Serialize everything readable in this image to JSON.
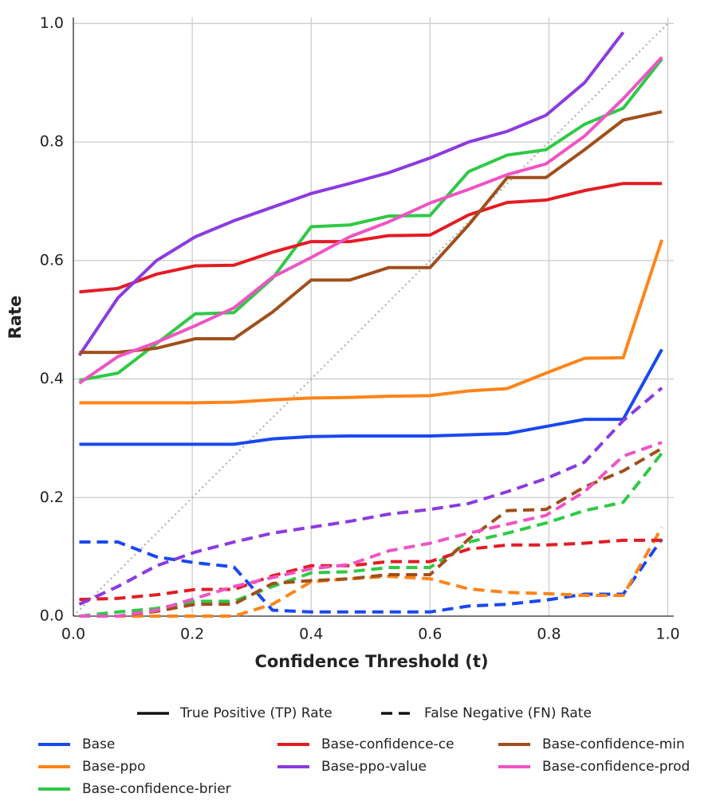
{
  "chart_data": {
    "type": "line",
    "xlabel": "Confidence Threshold (t)",
    "ylabel": "Rate",
    "x": [
      0.01,
      0.075,
      0.14,
      0.205,
      0.27,
      0.335,
      0.4,
      0.465,
      0.53,
      0.6,
      0.665,
      0.73,
      0.795,
      0.86,
      0.925,
      0.99
    ],
    "xlim": [
      0,
      1.01
    ],
    "ylim": [
      0,
      1.01
    ],
    "xticks": [
      {
        "value": 0,
        "label": "0.0"
      },
      0.2,
      0.4,
      0.6,
      0.8,
      {
        "value": 1,
        "label": "1.0"
      }
    ],
    "yticks": [
      {
        "value": 0,
        "label": "0.0"
      },
      0.2,
      0.4,
      0.6,
      0.8,
      {
        "value": 1,
        "label": "1.0"
      }
    ],
    "grid": true,
    "diagonal": true,
    "legend_columns": 3,
    "line_styles": [
      {
        "label": "True Positive (TP) Rate",
        "dash": "solid"
      },
      {
        "label": "False Negative (FN) Rate",
        "dash": "dashed"
      }
    ],
    "series": [
      {
        "name": "Base",
        "color": "#1a48f0",
        "values": [
          0.29,
          0.29,
          0.29,
          0.29,
          0.29,
          0.299,
          0.303,
          0.304,
          0.304,
          0.304,
          0.306,
          0.308,
          0.32,
          0.332,
          0.332,
          0.45
        ],
        "fn_values": [
          0.125,
          0.125,
          0.1,
          0.09,
          0.083,
          0.01,
          0.007,
          0.007,
          0.007,
          0.007,
          0.017,
          0.02,
          0.027,
          0.037,
          0.037,
          0.13
        ]
      },
      {
        "name": "Base-ppo",
        "color": "#ff8419",
        "values": [
          0.36,
          0.36,
          0.36,
          0.36,
          0.361,
          0.365,
          0.368,
          0.369,
          0.371,
          0.372,
          0.38,
          0.384,
          0.41,
          0.435,
          0.436,
          0.635
        ],
        "fn_values": [
          0,
          0,
          0,
          0,
          0,
          0.02,
          0.058,
          0.063,
          0.067,
          0.063,
          0.046,
          0.04,
          0.038,
          0.035,
          0.035,
          0.15
        ]
      },
      {
        "name": "Base-confidence-brier",
        "color": "#2fc946",
        "values": [
          0.398,
          0.41,
          0.46,
          0.51,
          0.512,
          0.57,
          0.657,
          0.66,
          0.675,
          0.676,
          0.75,
          0.778,
          0.787,
          0.83,
          0.857,
          0.94
        ],
        "fn_values": [
          0,
          0.007,
          0.013,
          0.025,
          0.025,
          0.05,
          0.073,
          0.075,
          0.082,
          0.082,
          0.125,
          0.14,
          0.157,
          0.178,
          0.192,
          0.275
        ]
      },
      {
        "name": "Base-confidence-ce",
        "color": "#e31c24",
        "values": [
          0.547,
          0.553,
          0.577,
          0.591,
          0.592,
          0.614,
          0.632,
          0.632,
          0.642,
          0.643,
          0.677,
          0.698,
          0.702,
          0.718,
          0.73,
          0.73
        ],
        "fn_values": [
          0.028,
          0.03,
          0.036,
          0.045,
          0.045,
          0.068,
          0.085,
          0.085,
          0.092,
          0.092,
          0.113,
          0.12,
          0.12,
          0.123,
          0.128,
          0.128
        ]
      },
      {
        "name": "Base-ppo-value",
        "color": "#8b3be0",
        "values": [
          0.44,
          0.537,
          0.6,
          0.64,
          0.667,
          0.69,
          0.713,
          0.73,
          0.748,
          0.773,
          0.8,
          0.818,
          0.845,
          0.9,
          0.985,
          null
        ],
        "fn_values": [
          0.02,
          0.05,
          0.085,
          0.108,
          0.125,
          0.14,
          0.15,
          0.16,
          0.172,
          0.18,
          0.19,
          0.21,
          0.232,
          0.26,
          0.33,
          0.385
        ]
      },
      {
        "name": "Base-confidence-min",
        "color": "#a04f1c",
        "values": [
          0.445,
          0.445,
          0.452,
          0.468,
          0.468,
          0.513,
          0.567,
          0.567,
          0.588,
          0.588,
          0.66,
          0.74,
          0.74,
          0.787,
          0.837,
          0.851
        ],
        "fn_values": [
          0,
          0,
          0.008,
          0.02,
          0.02,
          0.055,
          0.06,
          0.063,
          0.07,
          0.07,
          0.13,
          0.178,
          0.18,
          0.218,
          0.245,
          0.283
        ]
      },
      {
        "name": "Base-confidence-prod",
        "color": "#ef54c4",
        "values": [
          0.393,
          0.438,
          0.462,
          0.49,
          0.52,
          0.572,
          0.605,
          0.64,
          0.665,
          0.697,
          0.72,
          0.745,
          0.763,
          0.81,
          0.873,
          0.943
        ],
        "fn_values": [
          0,
          0,
          0.01,
          0.03,
          0.05,
          0.065,
          0.08,
          0.087,
          0.11,
          0.123,
          0.14,
          0.155,
          0.17,
          0.21,
          0.27,
          0.293
        ]
      }
    ]
  }
}
